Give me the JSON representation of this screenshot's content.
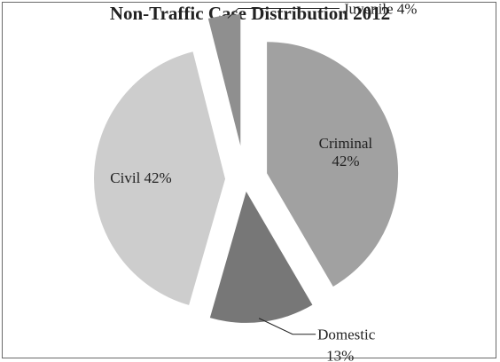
{
  "chart_data": {
    "type": "pie",
    "title": "Non-Traffic Case Distribution 2012",
    "slices": [
      {
        "label": "Criminal",
        "value": 42,
        "value_text": "42%",
        "color": "#a1a1a1"
      },
      {
        "label": "Domestic",
        "value": 13,
        "value_text": "13%",
        "color": "#777777"
      },
      {
        "label": "Civil",
        "value": 42,
        "value_text": "42%",
        "color": "#cdcdcd"
      },
      {
        "label": "Juvenile",
        "value": 4,
        "value_text": "4%",
        "color": "#8f8f8f"
      }
    ],
    "legend": "none",
    "exploded": true
  }
}
